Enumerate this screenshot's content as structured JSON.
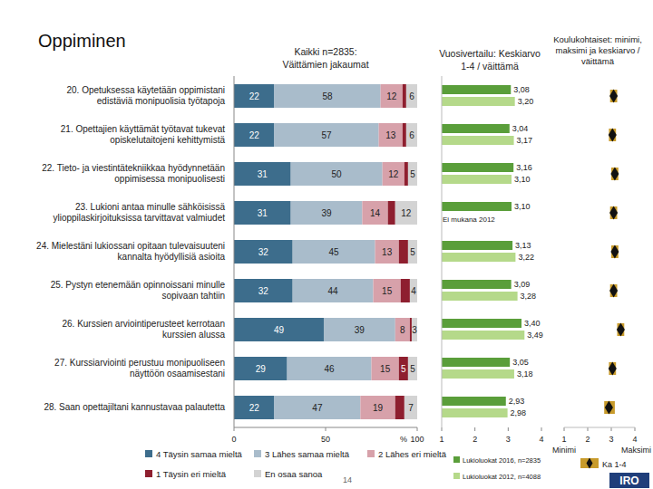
{
  "title": "Oppiminen",
  "page_number": "14",
  "logo": "IRO",
  "chart_data": [
    {
      "type": "bar",
      "orientation": "horizontal",
      "stacked": true,
      "data_labels": true,
      "title": "Kaikki n=2835: Väittämien jakaumat",
      "x_label": "%",
      "legend": "bottom",
      "categories": [
        "20. Opetuksessa käytetään oppimistani edistäviä monipuolisia työtapoja",
        "21. Opettajien käyttämät työtavat tukevat opiskelutaitojeni kehittymistä",
        "22. Tieto- ja viestintätekniikkaa hyödynnetään oppimisessa monipuolisesti",
        "23. Lukioni antaa minulle sähköisissä ylioppilaskirjoituksissa tarvittavat valmiudet",
        "24. Mielestäni lukiossani opitaan tulevaisuuteni kannalta hyödyllisiä asioita",
        "25. Pystyn etenemään opinnoissani minulle sopivaan tahtiin",
        "26. Kurssien arviointiperusteet kerrotaan kurssien alussa",
        "27. Kurssiarviointi perustuu monipuoliseen näyttöön osaamisestani",
        "28. Saan opettajiltani kannustavaa palautetta"
      ],
      "xlim": [
        0,
        100
      ],
      "xticks": [
        0,
        50,
        100
      ],
      "series": [
        {
          "name": "4 Täysin samaa mieltä",
          "color": "#3d6d8c",
          "values": [
            22,
            22,
            31,
            31,
            32,
            32,
            49,
            29,
            22
          ]
        },
        {
          "name": "3 Lähes samaa mieltä",
          "color": "#a9bccb",
          "values": [
            58,
            57,
            50,
            39,
            45,
            44,
            39,
            46,
            47
          ]
        },
        {
          "name": "2 Lähes eri mieltä",
          "color": "#d7a1aa",
          "values": [
            12,
            13,
            12,
            14,
            13,
            15,
            8,
            15,
            19
          ]
        },
        {
          "name": "1 Täysin eri mieltä",
          "color": "#8e1f2f",
          "values": [
            2,
            2,
            2,
            4,
            5,
            5,
            1,
            5,
            5
          ],
          "value_labels": [
            null,
            null,
            null,
            null,
            null,
            null,
            null,
            "5",
            null
          ]
        },
        {
          "name": "En osaa sanoa",
          "color": "#d3d3d3",
          "values": [
            6,
            6,
            5,
            12,
            5,
            4,
            3,
            5,
            7
          ]
        }
      ]
    },
    {
      "type": "bar",
      "orientation": "horizontal",
      "data_labels": true,
      "title": "Vuosivertailu: Keskiarvo 1-4 / väittämä",
      "legend": "bottom",
      "categories": [
        null,
        null,
        null,
        null,
        null,
        null,
        null,
        null,
        null
      ],
      "xlim": [
        1,
        4
      ],
      "xticks": [
        1,
        2,
        3,
        4
      ],
      "annotations": [
        {
          "text": "Ei mukana 2012",
          "series": 1,
          "index": 3
        }
      ],
      "series": [
        {
          "name": "Lukioluokat 2016, n=2835",
          "color": "#5a9e3a",
          "values": [
            3.08,
            3.04,
            3.16,
            3.1,
            3.13,
            3.09,
            3.4,
            3.05,
            2.93
          ],
          "value_labels": [
            "3,08",
            "3,04",
            "3,16",
            "3,10",
            "3,13",
            "3,09",
            "3,40",
            "3,05",
            "2,93"
          ]
        },
        {
          "name": "Lukioluokat 2012, n=4088",
          "color": "#b5d98a",
          "values": [
            3.2,
            3.17,
            3.1,
            null,
            3.22,
            3.28,
            3.49,
            3.18,
            2.98
          ],
          "value_labels": [
            "3,20",
            "3,17",
            "3,10",
            null,
            "3,22",
            "3,28",
            "3,49",
            "3,18",
            "2,98"
          ]
        }
      ]
    },
    {
      "type": "range",
      "title": "Koulukohtaiset: minimi, maksimi ja keskiarvo / väittämä",
      "legend": "bottom",
      "color": "#c89b2b",
      "categories": [
        null,
        null,
        null,
        null,
        null,
        null,
        null,
        null,
        null
      ],
      "xlim": [
        1,
        4
      ],
      "xticks": [
        1,
        2,
        3,
        4
      ],
      "series": [
        {
          "name": "Minimi",
          "values": [
            2.95,
            2.9,
            3.0,
            2.95,
            3.0,
            2.95,
            3.25,
            2.9,
            2.7
          ]
        },
        {
          "name": "Maksimi",
          "values": [
            3.25,
            3.2,
            3.3,
            3.25,
            3.3,
            3.25,
            3.55,
            3.2,
            3.15
          ]
        },
        {
          "name": "Ka 1-4",
          "color": "#111111",
          "marker": "diamond",
          "values": [
            3.1,
            3.05,
            3.15,
            3.1,
            3.15,
            3.1,
            3.4,
            3.05,
            2.9
          ]
        }
      ]
    }
  ]
}
